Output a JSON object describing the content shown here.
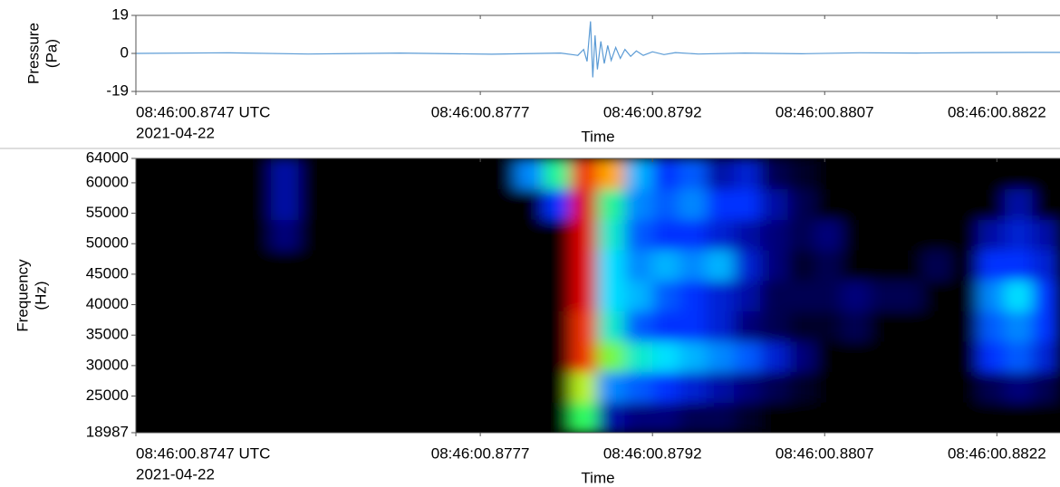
{
  "chart_data": [
    {
      "type": "line",
      "ylabel": [
        "Pressure",
        "(Pa)"
      ],
      "xlabel": "Time",
      "x_date": "2021-04-22",
      "color": "#5b9bd5",
      "xlim": [
        0.8747,
        0.88275
      ],
      "ylim": [
        -19,
        19
      ],
      "yticks": [
        -19,
        0,
        19
      ],
      "xticks": [
        {
          "value": 0.8747,
          "label": "08:46:00.8747 UTC"
        },
        {
          "value": 0.8777,
          "label": "08:46:00.8777"
        },
        {
          "value": 0.8792,
          "label": "08:46:00.8792"
        },
        {
          "value": 0.8807,
          "label": "08:46:00.8807"
        },
        {
          "value": 0.8822,
          "label": "08:46:00.8822"
        }
      ],
      "x": [
        0.8747,
        0.8755,
        0.8762,
        0.877,
        0.8778,
        0.8784,
        0.87855,
        0.8786,
        0.87863,
        0.87866,
        0.87868,
        0.8787,
        0.87872,
        0.87875,
        0.87878,
        0.87881,
        0.87884,
        0.87888,
        0.87892,
        0.87896,
        0.87901,
        0.87906,
        0.87912,
        0.8792,
        0.8793,
        0.8794,
        0.8796,
        0.88,
        0.8805,
        0.881,
        0.8815,
        0.882,
        0.8825,
        0.88275
      ],
      "values": [
        0,
        0.3,
        -0.3,
        0.2,
        -0.4,
        0.2,
        -1,
        2,
        -4,
        16,
        -12,
        9,
        -8,
        6,
        -5,
        4,
        -3.5,
        3,
        -2.5,
        2,
        -1.5,
        1.2,
        -1,
        0.8,
        -0.6,
        0.4,
        -0.3,
        0.2,
        -0.2,
        0.3,
        0.2,
        0.4,
        0.5,
        0.5
      ]
    },
    {
      "type": "heatmap",
      "ylabel": [
        "Frequency",
        "(Hz)"
      ],
      "xlabel": "Time",
      "x_date": "2021-04-22",
      "xlim": [
        0.8747,
        0.88275
      ],
      "ylim": [
        18987,
        64000
      ],
      "yticks": [
        18987,
        25000,
        30000,
        35000,
        40000,
        45000,
        50000,
        55000,
        60000,
        64000
      ],
      "xticks": [
        {
          "value": 0.8747,
          "label": "08:46:00.8747 UTC"
        },
        {
          "value": 0.8777,
          "label": "08:46:00.8777"
        },
        {
          "value": 0.8792,
          "label": "08:46:00.8792"
        },
        {
          "value": 0.8807,
          "label": "08:46:00.8807"
        },
        {
          "value": 0.8822,
          "label": "08:46:00.8822"
        }
      ],
      "x": [
        0.87482,
        0.87506,
        0.87529,
        0.87553,
        0.87577,
        0.876,
        0.87624,
        0.87648,
        0.87671,
        0.87695,
        0.87719,
        0.87742,
        0.87766,
        0.8779,
        0.87813,
        0.87837,
        0.87861,
        0.87884,
        0.87908,
        0.87932,
        0.87955,
        0.87979,
        0.88003,
        0.88026,
        0.8805,
        0.88074,
        0.88097,
        0.88121,
        0.88145,
        0.88168,
        0.88192,
        0.88216,
        0.88239,
        0.88263
      ],
      "y": [
        21488,
        26489,
        31491,
        36492,
        41493,
        46495,
        51496,
        56497,
        61499
      ],
      "z": [
        [
          0,
          0,
          0,
          0,
          0,
          0,
          0,
          0,
          0,
          0,
          0,
          0,
          0,
          0,
          0,
          0,
          0.65,
          0.2,
          0.15,
          0.15,
          0.1,
          0.1,
          0.05,
          0,
          0,
          0,
          0,
          0,
          0,
          0,
          0,
          0,
          0,
          0
        ],
        [
          0,
          0,
          0,
          0,
          0,
          0,
          0,
          0,
          0,
          0,
          0,
          0,
          0,
          0,
          0,
          0,
          0.75,
          0.4,
          0.35,
          0.3,
          0.25,
          0.2,
          0.15,
          0.1,
          0.05,
          0,
          0,
          0,
          0,
          0,
          0,
          0.1,
          0.15,
          0.1
        ],
        [
          0,
          0,
          0,
          0,
          0,
          0,
          0,
          0,
          0,
          0,
          0,
          0,
          0,
          0,
          0,
          0,
          0.95,
          0.7,
          0.55,
          0.5,
          0.45,
          0.4,
          0.35,
          0.25,
          0.15,
          0,
          0,
          0,
          0,
          0,
          0,
          0.3,
          0.35,
          0.25
        ],
        [
          0,
          0,
          0,
          0,
          0,
          0,
          0,
          0,
          0,
          0,
          0,
          0,
          0,
          0,
          0,
          0,
          0.95,
          0.55,
          0.35,
          0.3,
          0.3,
          0.25,
          0.15,
          0.1,
          0.05,
          0.05,
          0.1,
          0,
          0,
          0,
          0,
          0.35,
          0.4,
          0.3
        ],
        [
          0,
          0,
          0,
          0,
          0,
          0,
          0,
          0,
          0,
          0,
          0,
          0,
          0,
          0,
          0,
          0,
          1,
          0.5,
          0.45,
          0.35,
          0.3,
          0.25,
          0.2,
          0.1,
          0.1,
          0.1,
          0.15,
          0.1,
          0.1,
          0,
          0,
          0.4,
          0.5,
          0.3
        ],
        [
          0,
          0,
          0,
          0,
          0,
          0,
          0,
          0,
          0,
          0,
          0,
          0,
          0,
          0,
          0,
          0,
          1,
          0.5,
          0.4,
          0.45,
          0.4,
          0.45,
          0.25,
          0.15,
          0.05,
          0.1,
          0,
          0,
          0,
          0.1,
          0,
          0.3,
          0.3,
          0.25
        ],
        [
          0,
          0,
          0,
          0,
          0,
          0.15,
          0,
          0,
          0,
          0,
          0,
          0,
          0,
          0,
          0,
          0,
          1,
          0.55,
          0.35,
          0.3,
          0.3,
          0.25,
          0.2,
          0.15,
          0.1,
          0.15,
          0,
          0,
          0,
          0,
          0,
          0.2,
          0.25,
          0.2
        ],
        [
          0,
          0,
          0,
          0,
          0,
          0.2,
          0,
          0,
          0,
          0,
          0,
          0,
          0,
          0,
          0,
          0.3,
          1,
          0.6,
          0.4,
          0.35,
          0.4,
          0.3,
          0.3,
          0.2,
          0.1,
          0,
          0,
          0,
          0,
          0,
          0,
          0,
          0.2,
          0
        ],
        [
          0,
          0,
          0,
          0,
          0,
          0.2,
          0,
          0,
          0,
          0,
          0,
          0,
          0,
          0,
          0.4,
          0.6,
          0.95,
          0.85,
          0.45,
          0.3,
          0.35,
          0.2,
          0.25,
          0.1,
          0.05,
          0,
          0,
          0,
          0,
          0,
          0,
          0,
          0,
          0
        ]
      ]
    }
  ]
}
